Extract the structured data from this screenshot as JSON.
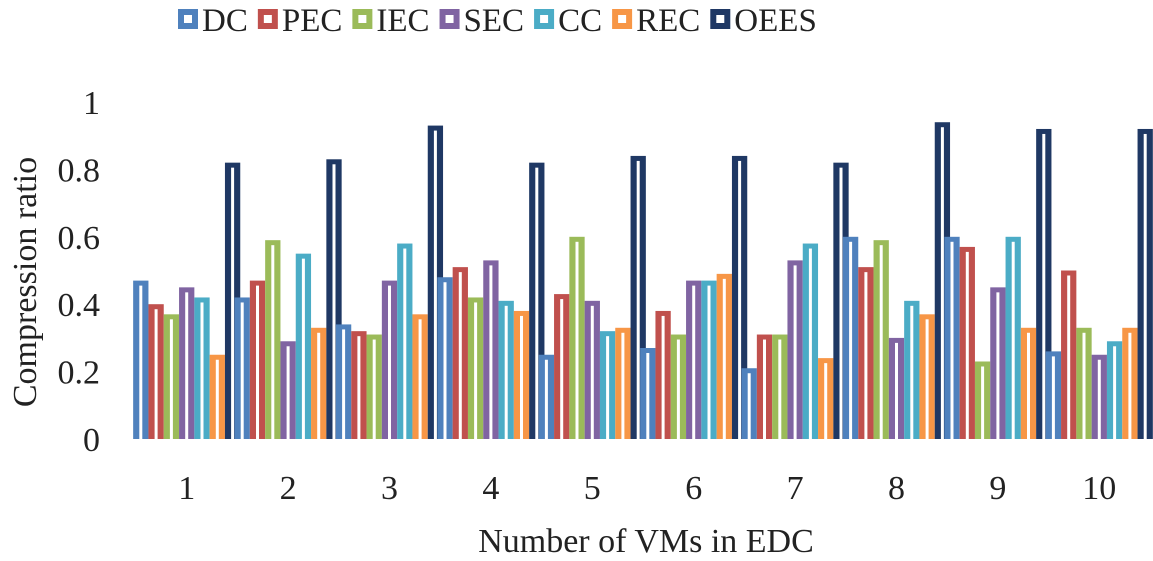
{
  "chart_data": {
    "type": "bar",
    "title": "",
    "xlabel": "Number of VMs in EDC",
    "ylabel": "Compression ratio",
    "ylim": [
      0,
      1
    ],
    "yticks": [
      "0",
      "0.2",
      "0.4",
      "0.6",
      "0.8",
      "1"
    ],
    "categories": [
      "1",
      "2",
      "3",
      "4",
      "5",
      "6",
      "7",
      "8",
      "9",
      "10"
    ],
    "legend_position": "top",
    "series": [
      {
        "name": "DC",
        "color": "#4F81BD",
        "values": [
          0.47,
          0.42,
          0.34,
          0.48,
          0.25,
          0.27,
          0.21,
          0.6,
          0.6,
          0.26
        ]
      },
      {
        "name": "PEC",
        "color": "#C0504D",
        "values": [
          0.4,
          0.47,
          0.32,
          0.51,
          0.43,
          0.38,
          0.31,
          0.51,
          0.57,
          0.5
        ]
      },
      {
        "name": "IEC",
        "color": "#9BBB59",
        "values": [
          0.37,
          0.59,
          0.31,
          0.42,
          0.6,
          0.31,
          0.31,
          0.59,
          0.23,
          0.33
        ]
      },
      {
        "name": "SEC",
        "color": "#8064A2",
        "values": [
          0.45,
          0.29,
          0.47,
          0.53,
          0.41,
          0.47,
          0.53,
          0.3,
          0.45,
          0.25
        ]
      },
      {
        "name": "CC",
        "color": "#4BACC6",
        "values": [
          0.42,
          0.55,
          0.58,
          0.41,
          0.32,
          0.47,
          0.58,
          0.41,
          0.6,
          0.29
        ]
      },
      {
        "name": "REC",
        "color": "#F79646",
        "values": [
          0.25,
          0.33,
          0.37,
          0.38,
          0.33,
          0.49,
          0.24,
          0.37,
          0.33,
          0.33
        ]
      },
      {
        "name": "OEES",
        "color": "#1F3864",
        "values": [
          0.82,
          0.83,
          0.93,
          0.82,
          0.84,
          0.84,
          0.82,
          0.94,
          0.92,
          0.92
        ]
      }
    ]
  }
}
